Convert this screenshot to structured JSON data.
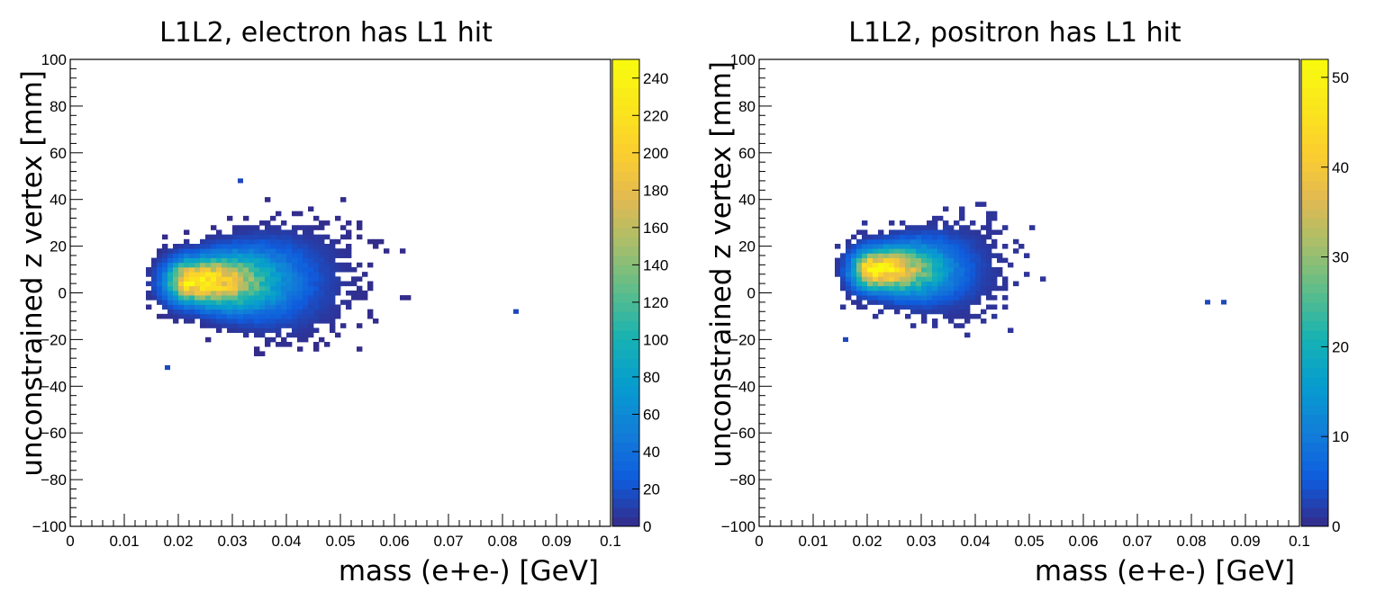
{
  "chart_data": [
    {
      "type": "heatmap",
      "title": "L1L2, electron has L1 hit",
      "xlabel": "mass (e+e-) [GeV]",
      "ylabel": "unconstrained z vertex [mm]",
      "xlim": [
        0,
        0.1
      ],
      "ylim": [
        -100,
        100
      ],
      "x_ticks": [
        "0",
        "0.01",
        "0.02",
        "0.03",
        "0.04",
        "0.05",
        "0.06",
        "0.07",
        "0.08",
        "0.09",
        "0.1"
      ],
      "y_ticks": [
        "−100",
        "−80",
        "−60",
        "−40",
        "−20",
        "0",
        "20",
        "40",
        "60",
        "80",
        "100"
      ],
      "zlim": [
        0,
        250
      ],
      "colorbar_ticks": [
        "0",
        "20",
        "40",
        "60",
        "80",
        "100",
        "120",
        "140",
        "160",
        "180",
        "200",
        "220",
        "240"
      ],
      "colormap": "parula",
      "peak": {
        "x": 0.022,
        "y": 4,
        "z": 240
      },
      "core_spread": {
        "sx": 0.0055,
        "sy": 6.0
      },
      "extent": {
        "x_min": 0.014,
        "x_max": 0.07,
        "y_min": -27,
        "y_max": 44
      },
      "outliers": [
        {
          "x": 0.082,
          "y": -9
        },
        {
          "x": 0.0175,
          "y": -33
        },
        {
          "x": 0.031,
          "y": 47
        }
      ]
    },
    {
      "type": "heatmap",
      "title": "L1L2, positron has L1 hit",
      "xlabel": "mass (e+e-) [GeV]",
      "ylabel": "unconstrained z vertex [mm]",
      "xlim": [
        0,
        0.1
      ],
      "ylim": [
        -100,
        100
      ],
      "x_ticks": [
        "0",
        "0.01",
        "0.02",
        "0.03",
        "0.04",
        "0.05",
        "0.06",
        "0.07",
        "0.08",
        "0.09",
        "0.1"
      ],
      "y_ticks": [
        "−100",
        "−80",
        "−60",
        "−40",
        "−20",
        "0",
        "20",
        "40",
        "60",
        "80",
        "100"
      ],
      "zlim": [
        0,
        52
      ],
      "colorbar_ticks": [
        "0",
        "10",
        "20",
        "30",
        "40",
        "50"
      ],
      "colormap": "parula",
      "peak": {
        "x": 0.0205,
        "y": 9,
        "z": 50
      },
      "core_spread": {
        "sx": 0.0045,
        "sy": 5.5
      },
      "extent": {
        "x_min": 0.014,
        "x_max": 0.057,
        "y_min": -21,
        "y_max": 43
      },
      "outliers": [
        {
          "x": 0.0825,
          "y": -5
        },
        {
          "x": 0.0855,
          "y": -5
        },
        {
          "x": 0.0155,
          "y": -21
        }
      ]
    }
  ]
}
